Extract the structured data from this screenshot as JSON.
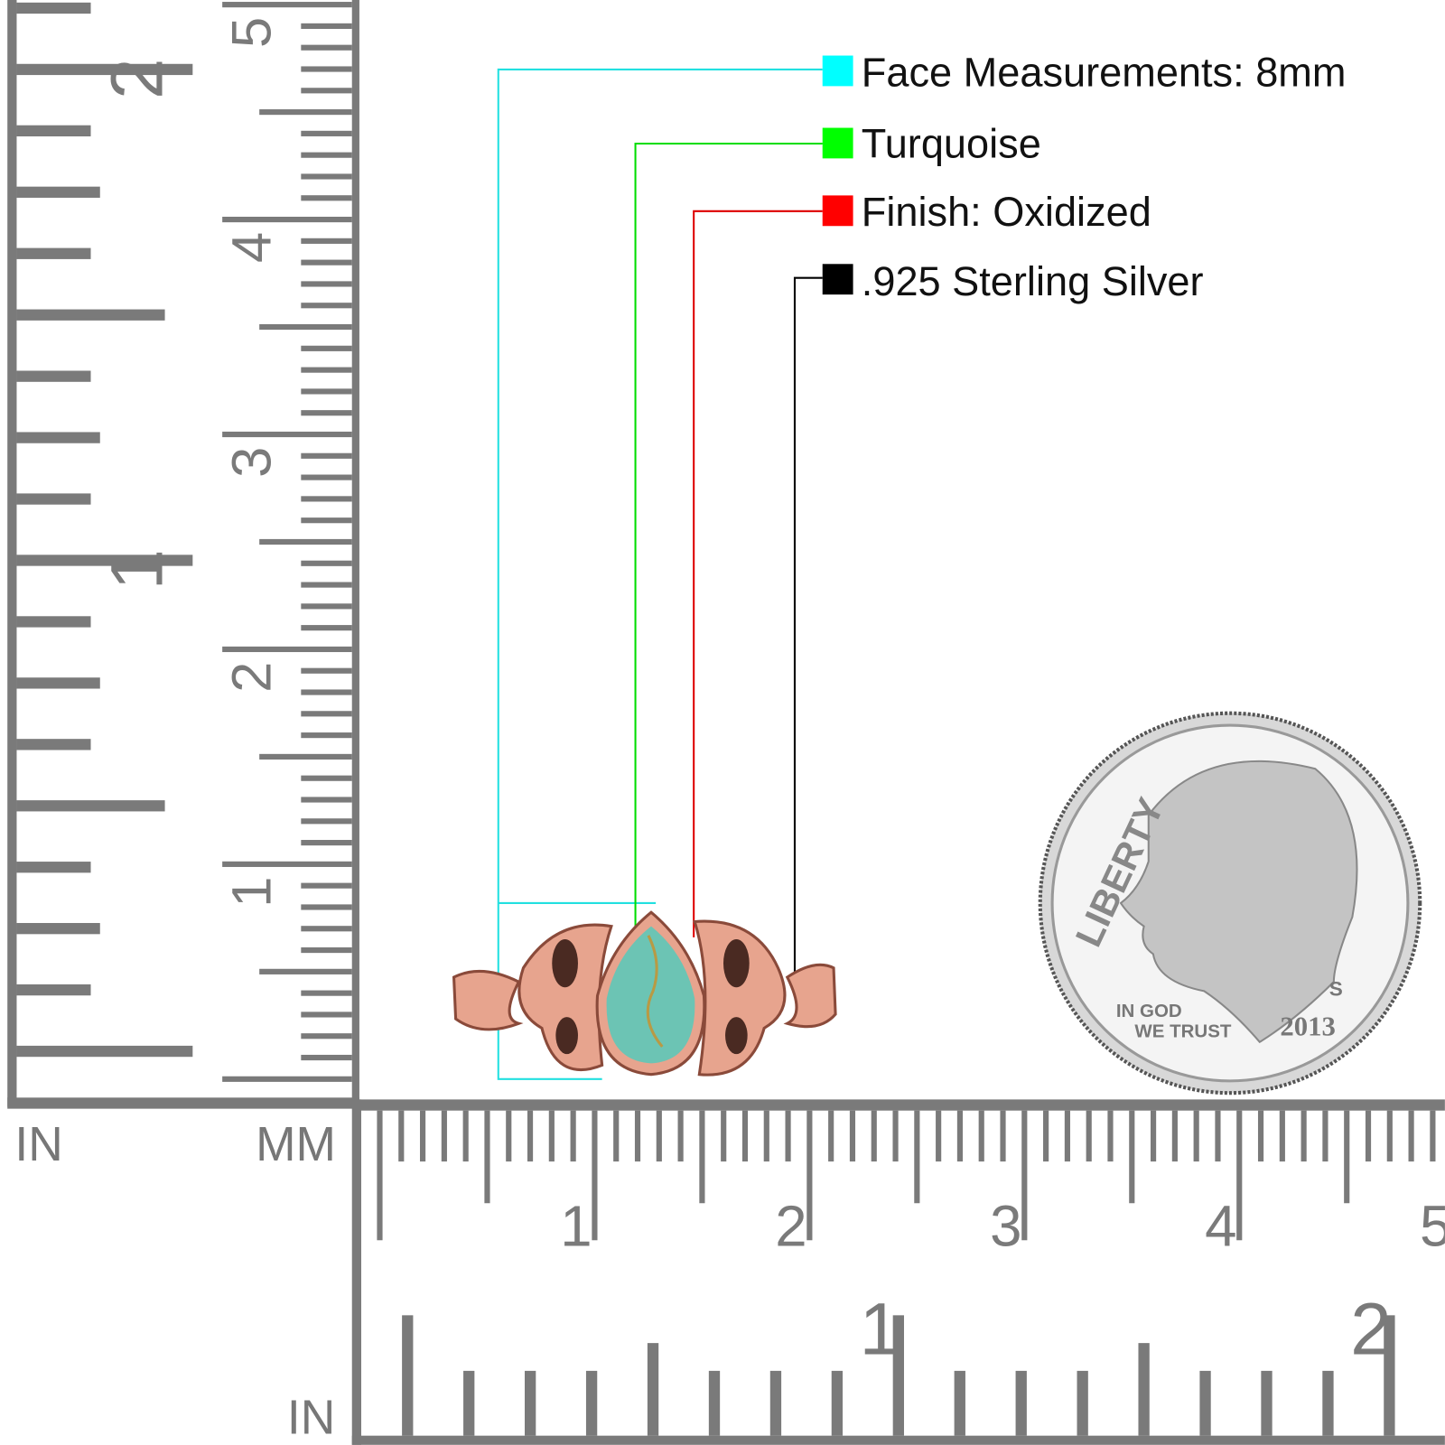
{
  "legend": [
    {
      "label": "Face Measurements: 8mm",
      "color": "#00ffff"
    },
    {
      "label": "Turquoise",
      "color": "#00ff00"
    },
    {
      "label": "Finish: Oxidized",
      "color": "#ff0000"
    },
    {
      "label": ".925 Sterling Silver",
      "color": "#000000"
    }
  ],
  "rulers": {
    "left_in_label": "IN",
    "mm_label": "MM",
    "bottom_in_label": "IN",
    "vertical_in_numbers": [
      "1",
      "2"
    ],
    "vertical_mm_numbers": [
      "1",
      "2",
      "3",
      "4",
      "5"
    ],
    "horizontal_mm_numbers": [
      "1",
      "2",
      "3",
      "4",
      "5"
    ],
    "horizontal_in_numbers": [
      "1",
      "2"
    ],
    "color": "#7a7a7a"
  },
  "coin": {
    "top_text": "LIBERTY",
    "motto_1": "IN GOD",
    "motto_2": "WE TRUST",
    "mint": "S",
    "year": "2013"
  },
  "ring": {
    "metal_color": "#e7a48e",
    "stone_color": "#6cc4b4"
  }
}
